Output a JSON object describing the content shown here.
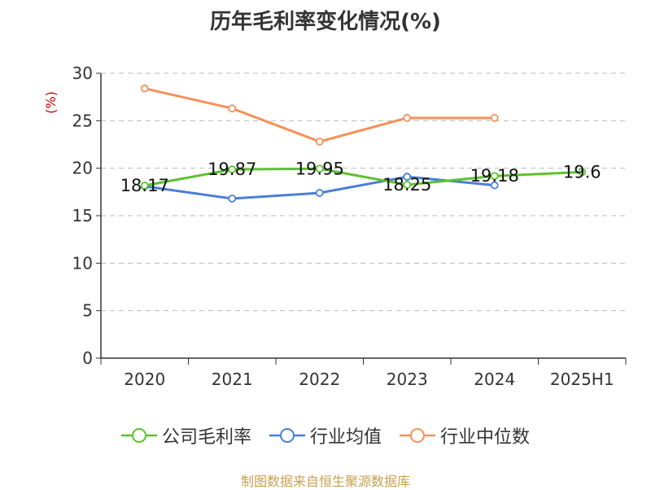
{
  "title": "历年毛利率变化情况(%)",
  "source_text": "制图数据来自恒生聚源数据库",
  "chart_data": {
    "type": "line",
    "title": "历年毛利率变化情况(%)",
    "ylabel": "(%)",
    "ylim": [
      0,
      30
    ],
    "yticks": [
      0,
      5,
      10,
      15,
      20,
      25,
      30
    ],
    "categories": [
      "2020",
      "2021",
      "2022",
      "2023",
      "2024",
      "2025H1"
    ],
    "grid": true,
    "legend_position": "bottom",
    "series": [
      {
        "name": "公司毛利率",
        "color": "#5cc22e",
        "values": [
          18.17,
          19.87,
          19.95,
          18.25,
          19.18,
          19.6
        ],
        "show_labels": true
      },
      {
        "name": "行业均值",
        "color": "#4a7fd6",
        "values": [
          18.1,
          16.8,
          17.4,
          19.1,
          18.2,
          null
        ],
        "show_labels": false
      },
      {
        "name": "行业中位数",
        "color": "#f5915a",
        "values": [
          28.4,
          26.3,
          22.8,
          25.3,
          25.3,
          null
        ],
        "show_labels": false
      }
    ]
  }
}
